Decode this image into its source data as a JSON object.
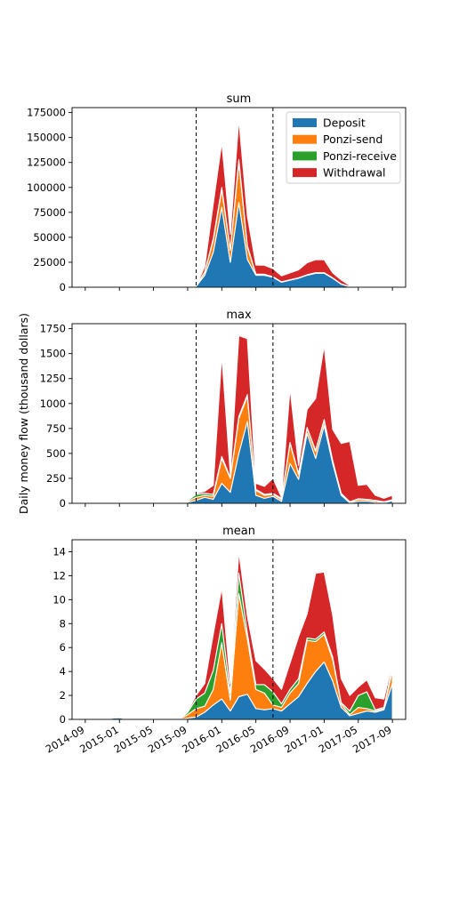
{
  "colors": {
    "Deposit": "#1f77b4",
    "Ponzi-send": "#ff7f0e",
    "Ponzi-receive": "#2ca02c",
    "Withdrawal": "#d62728"
  },
  "ylabel": "Daily money flow (thousand dollars)",
  "xticks": [
    "2014-09",
    "2015-01",
    "2015-05",
    "2015-09",
    "2016-01",
    "2016-05",
    "2016-09",
    "2017-01",
    "2017-05",
    "2017-09"
  ],
  "xtick_months": [
    0,
    4,
    8,
    12,
    16,
    20,
    24,
    28,
    32,
    36
  ],
  "legend": {
    "placement": "top-right",
    "entries": [
      "Deposit",
      "Ponzi-send",
      "Ponzi-receive",
      "Withdrawal"
    ]
  },
  "chart_data": [
    {
      "type": "area",
      "title": "sum",
      "stacked": true,
      "ylim": [
        0,
        180000
      ],
      "yticks": [
        0,
        25000,
        50000,
        75000,
        100000,
        125000,
        150000,
        175000
      ],
      "vlines": [
        "2015-10",
        "2016-07"
      ],
      "x": [
        "2015-10",
        "2015-11",
        "2015-12",
        "2016-01",
        "2016-02",
        "2016-03",
        "2016-04",
        "2016-05",
        "2016-06",
        "2016-07",
        "2016-08",
        "2016-09",
        "2016-10",
        "2016-11",
        "2016-12",
        "2017-01",
        "2017-02",
        "2017-03",
        "2017-04",
        "2017-05"
      ],
      "series": [
        {
          "name": "Deposit",
          "values": [
            1000,
            12000,
            35000,
            80000,
            25000,
            85000,
            28000,
            12000,
            12000,
            10000,
            5000,
            7000,
            9000,
            12000,
            14000,
            14000,
            9000,
            3000,
            500,
            0
          ]
        },
        {
          "name": "Ponzi-send",
          "values": [
            500,
            3000,
            12000,
            18000,
            12000,
            40000,
            12000,
            1000,
            800,
            500,
            300,
            300,
            300,
            400,
            500,
            500,
            300,
            200,
            100,
            0
          ]
        },
        {
          "name": "Ponzi-receive",
          "values": [
            200,
            500,
            1500,
            2000,
            1000,
            3000,
            1500,
            200,
            200,
            100,
            100,
            100,
            100,
            100,
            100,
            100,
            100,
            100,
            0,
            0
          ]
        },
        {
          "name": "Withdrawal",
          "values": [
            300,
            5000,
            35000,
            45000,
            15000,
            40000,
            30000,
            9000,
            9000,
            8000,
            6000,
            7000,
            8000,
            12000,
            13000,
            13000,
            5000,
            4000,
            1000,
            0
          ]
        }
      ]
    },
    {
      "type": "area",
      "title": "max",
      "stacked": true,
      "ylim": [
        0,
        1800
      ],
      "yticks": [
        0,
        250,
        500,
        750,
        1000,
        1250,
        1500,
        1750
      ],
      "vlines": [
        "2015-10",
        "2016-07"
      ],
      "x": [
        "2014-10",
        "2014-11",
        "2014-12",
        "2015-01",
        "2015-02",
        "2015-03",
        "2015-04",
        "2015-05",
        "2015-06",
        "2015-07",
        "2015-08",
        "2015-09",
        "2015-10",
        "2015-11",
        "2015-12",
        "2016-01",
        "2016-02",
        "2016-03",
        "2016-04",
        "2016-05",
        "2016-06",
        "2016-07",
        "2016-08",
        "2016-09",
        "2016-10",
        "2016-11",
        "2016-12",
        "2017-01",
        "2017-02",
        "2017-03",
        "2017-04",
        "2017-05",
        "2017-06",
        "2017-07",
        "2017-08",
        "2017-09"
      ],
      "series": [
        {
          "name": "Deposit",
          "values": [
            0,
            2,
            5,
            3,
            1,
            0,
            0,
            0,
            0,
            0,
            0,
            10,
            30,
            60,
            40,
            200,
            110,
            500,
            820,
            80,
            50,
            70,
            20,
            400,
            240,
            700,
            450,
            780,
            400,
            80,
            5,
            20,
            20,
            10,
            5,
            25
          ]
        },
        {
          "name": "Ponzi-send",
          "values": [
            0,
            0,
            0,
            0,
            0,
            0,
            0,
            0,
            0,
            0,
            0,
            10,
            30,
            20,
            30,
            250,
            140,
            350,
            250,
            50,
            30,
            20,
            20,
            200,
            50,
            50,
            70,
            50,
            20,
            10,
            5,
            20,
            15,
            15,
            5,
            5
          ]
        },
        {
          "name": "Ponzi-receive",
          "values": [
            0,
            0,
            0,
            0,
            0,
            0,
            0,
            0,
            0,
            0,
            0,
            10,
            30,
            20,
            20,
            20,
            10,
            20,
            20,
            10,
            10,
            10,
            10,
            10,
            10,
            10,
            10,
            10,
            10,
            10,
            5,
            5,
            5,
            5,
            5,
            5
          ]
        },
        {
          "name": "Withdrawal",
          "values": [
            0,
            0,
            0,
            0,
            0,
            0,
            0,
            0,
            0,
            0,
            0,
            10,
            10,
            20,
            90,
            1010,
            30,
            810,
            560,
            60,
            80,
            150,
            10,
            540,
            80,
            180,
            520,
            740,
            310,
            500,
            605,
            135,
            150,
            50,
            35,
            45
          ]
        }
      ]
    },
    {
      "type": "area",
      "title": "mean",
      "stacked": true,
      "ylim": [
        0,
        15
      ],
      "yticks": [
        0,
        2,
        4,
        6,
        8,
        10,
        12,
        14
      ],
      "vlines": [
        "2015-10",
        "2016-07"
      ],
      "x": [
        "2014-10",
        "2014-11",
        "2014-12",
        "2015-01",
        "2015-02",
        "2015-03",
        "2015-04",
        "2015-05",
        "2015-06",
        "2015-07",
        "2015-08",
        "2015-09",
        "2015-10",
        "2015-11",
        "2015-12",
        "2016-01",
        "2016-02",
        "2016-03",
        "2016-04",
        "2016-05",
        "2016-06",
        "2016-07",
        "2016-08",
        "2016-09",
        "2016-10",
        "2016-11",
        "2016-12",
        "2017-01",
        "2017-02",
        "2017-03",
        "2017-04",
        "2017-05",
        "2017-06",
        "2017-07",
        "2017-08",
        "2017-09"
      ],
      "series": [
        {
          "name": "Deposit",
          "values": [
            0,
            0.05,
            0.1,
            0.15,
            0,
            0,
            0,
            0,
            0,
            0,
            0,
            0.1,
            0.2,
            0.6,
            1.2,
            1.7,
            0.7,
            1.9,
            2.1,
            0.9,
            0.8,
            0.9,
            0.7,
            1.3,
            1.9,
            3.0,
            4.0,
            4.8,
            3.2,
            1.0,
            0.3,
            0.5,
            0.7,
            0.6,
            0.8,
            3.0
          ]
        },
        {
          "name": "Ponzi-send",
          "values": [
            0,
            0,
            0,
            0,
            0,
            0,
            0,
            0,
            0,
            0,
            0,
            0.3,
            0.7,
            0.5,
            1.3,
            4.7,
            0.9,
            8.6,
            4.6,
            1.6,
            1.4,
            0.3,
            0.3,
            0.9,
            1.1,
            3.6,
            2.5,
            2.3,
            1.8,
            0.3,
            0.1,
            0.5,
            0.2,
            0.1,
            0.1,
            1.1
          ]
        },
        {
          "name": "Ponzi-receive",
          "values": [
            0,
            0,
            0,
            0,
            0,
            0,
            0,
            0,
            0,
            0,
            0,
            0.2,
            0.8,
            1.1,
            1.6,
            1.6,
            0.6,
            1.7,
            0.5,
            0.4,
            0.7,
            1.1,
            0.3,
            0.3,
            0.4,
            0.2,
            0.2,
            0.2,
            0.2,
            0.1,
            0.3,
            1.0,
            1.4,
            0.1,
            0.1,
            0.3
          ]
        },
        {
          "name": "Withdrawal",
          "values": [
            0,
            0,
            0,
            0,
            0,
            0,
            0,
            0,
            0,
            0,
            0,
            0.1,
            0.3,
            0.8,
            3.0,
            3.0,
            0.8,
            1.8,
            1.4,
            2.0,
            1.3,
            1.1,
            1.2,
            2.2,
            3.5,
            2.0,
            5.5,
            5.0,
            3.5,
            2.0,
            1.3,
            0.7,
            1.0,
            1.0,
            0.7,
            0.3
          ]
        }
      ]
    }
  ]
}
